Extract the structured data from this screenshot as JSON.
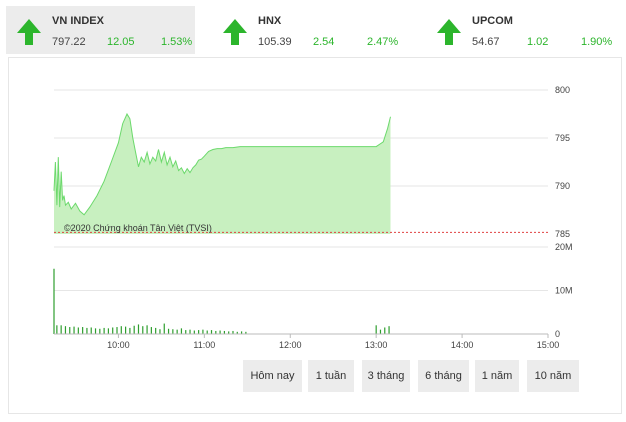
{
  "indices": [
    {
      "name": "VN INDEX",
      "price": "797.22",
      "change": "12.05",
      "percent": "1.53%",
      "direction": "up",
      "active": true
    },
    {
      "name": "HNX",
      "price": "105.39",
      "change": "2.54",
      "percent": "2.47%",
      "direction": "up",
      "active": false
    },
    {
      "name": "UPCOM",
      "price": "54.67",
      "change": "1.02",
      "percent": "1.90%",
      "direction": "up",
      "active": false
    }
  ],
  "colors": {
    "up": "#2cb52c",
    "area_fill": "#c8f0c0",
    "line": "#6cd96c",
    "reference": "#e04040",
    "volume": "#2e9e2e"
  },
  "copyright": "©2020 Chứng khoán Tân Việt (TVSI)",
  "chart_data": {
    "type": "area",
    "price_axis": {
      "ticks": [
        785,
        790,
        795,
        800
      ],
      "ylim": [
        785,
        800
      ]
    },
    "reference_level": 785.17,
    "volume_axis": {
      "ticks": [
        "0",
        "10M",
        "20M"
      ],
      "ylim": [
        0,
        20
      ]
    },
    "x_axis": {
      "ticks": [
        "10:00",
        "11:00",
        "12:00",
        "13:00",
        "14:00",
        "15:00"
      ]
    },
    "price_series": {
      "times": [
        "09:15",
        "09:16",
        "09:17",
        "09:18",
        "09:19",
        "09:20",
        "09:21",
        "09:22",
        "09:23",
        "09:25",
        "09:27",
        "09:30",
        "09:33",
        "09:36",
        "09:40",
        "09:45",
        "09:50",
        "09:55",
        "10:00",
        "10:03",
        "10:06",
        "10:08",
        "10:10",
        "10:12",
        "10:14",
        "10:16",
        "10:18",
        "10:20",
        "10:22",
        "10:24",
        "10:26",
        "10:28",
        "10:30",
        "10:32",
        "10:34",
        "10:36",
        "10:38",
        "10:40",
        "10:42",
        "10:44",
        "10:46",
        "10:48",
        "10:50",
        "10:52",
        "10:54",
        "10:56",
        "10:58",
        "11:00",
        "11:03",
        "11:06",
        "11:09",
        "11:12",
        "11:15",
        "11:20",
        "11:25",
        "11:30",
        "13:00",
        "13:05",
        "13:08",
        "13:10"
      ],
      "values": [
        789.5,
        792.5,
        788.0,
        793.0,
        787.8,
        791.5,
        788.5,
        789.0,
        788.0,
        788.3,
        787.6,
        788.2,
        787.4,
        787.0,
        787.8,
        789.0,
        790.5,
        792.5,
        794.5,
        796.5,
        797.5,
        797.0,
        795.0,
        793.5,
        792.0,
        793.0,
        792.5,
        793.5,
        792.3,
        793.0,
        792.6,
        793.8,
        792.5,
        793.5,
        792.2,
        793.0,
        792.0,
        792.6,
        791.6,
        791.9,
        791.3,
        791.8,
        791.4,
        791.9,
        792.2,
        792.7,
        792.8,
        793.1,
        793.6,
        793.8,
        793.9,
        793.9,
        794.0,
        794.0,
        794.1,
        794.1,
        794.1,
        794.6,
        796.0,
        797.22
      ]
    },
    "volume_series": {
      "times": [
        "09:15",
        "09:17",
        "09:20",
        "09:23",
        "09:26",
        "09:29",
        "09:32",
        "09:35",
        "09:38",
        "09:41",
        "09:44",
        "09:47",
        "09:50",
        "09:53",
        "09:56",
        "09:59",
        "10:02",
        "10:05",
        "10:08",
        "10:11",
        "10:14",
        "10:17",
        "10:20",
        "10:23",
        "10:26",
        "10:29",
        "10:32",
        "10:35",
        "10:38",
        "10:41",
        "10:44",
        "10:47",
        "10:50",
        "10:53",
        "10:56",
        "10:59",
        "11:02",
        "11:05",
        "11:08",
        "11:11",
        "11:14",
        "11:17",
        "11:20",
        "11:23",
        "11:26",
        "11:29",
        "13:00",
        "13:03",
        "13:06",
        "13:09"
      ],
      "values": [
        15,
        2.0,
        2.0,
        1.8,
        1.6,
        1.7,
        1.5,
        1.6,
        1.4,
        1.5,
        1.3,
        1.2,
        1.4,
        1.3,
        1.5,
        1.6,
        1.8,
        1.7,
        1.4,
        1.9,
        2.2,
        1.8,
        2.0,
        1.6,
        1.4,
        1.1,
        2.4,
        1.2,
        1.1,
        1.0,
        1.3,
        0.9,
        1.0,
        0.8,
        0.9,
        1.0,
        0.8,
        0.9,
        0.7,
        0.8,
        0.7,
        0.6,
        0.7,
        0.5,
        0.6,
        0.5,
        2.0,
        1.0,
        1.5,
        1.8
      ]
    }
  },
  "range_buttons": [
    "Hôm nay",
    "1 tuần",
    "3 tháng",
    "6 tháng",
    "1 năm",
    "10 năm"
  ]
}
